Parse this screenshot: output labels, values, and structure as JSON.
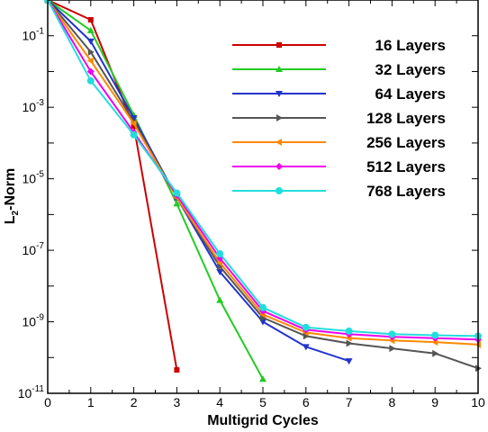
{
  "chart_data": {
    "type": "line",
    "xlabel": "Multigrid Cycles",
    "ylabel_main": "L",
    "ylabel_sub": "2",
    "ylabel_rest": "-Norm",
    "xlim": [
      0,
      10
    ],
    "ylim": [
      1e-11,
      1
    ],
    "yscale": "log",
    "grid": false,
    "legend_placement": "top-right",
    "x_ticks": [
      {
        "value": 0,
        "label": "0"
      },
      {
        "value": 1,
        "label": "1"
      },
      {
        "value": 2,
        "label": "2"
      },
      {
        "value": 3,
        "label": "3"
      },
      {
        "value": 4,
        "label": "4"
      },
      {
        "value": 5,
        "label": "5"
      },
      {
        "value": 6,
        "label": "6"
      },
      {
        "value": 7,
        "label": "7"
      },
      {
        "value": 8,
        "label": "8"
      },
      {
        "value": 9,
        "label": "9"
      },
      {
        "value": 10,
        "label": "10"
      }
    ],
    "y_ticks": [
      {
        "value": 0.1,
        "base": "10",
        "exp": "-1"
      },
      {
        "value": 0.001,
        "base": "10",
        "exp": "-3"
      },
      {
        "value": 1e-05,
        "base": "10",
        "exp": "-5"
      },
      {
        "value": 1e-07,
        "base": "10",
        "exp": "-7"
      },
      {
        "value": 1e-09,
        "base": "10",
        "exp": "-9"
      },
      {
        "value": 1e-11,
        "base": "10",
        "exp": "-11"
      }
    ],
    "series": [
      {
        "name": "16 Layers",
        "color": "#cc0000",
        "marker": "square",
        "x": [
          0,
          1,
          2,
          3
        ],
        "y": [
          1.0,
          0.28,
          0.0003,
          4.5e-11
        ]
      },
      {
        "name": "32 Layers",
        "color": "#22cc22",
        "marker": "triangle-up",
        "x": [
          0,
          1,
          2,
          3,
          4,
          5
        ],
        "y": [
          1.0,
          0.14,
          0.0006,
          2e-06,
          4e-09,
          2.5e-11
        ]
      },
      {
        "name": "64 Layers",
        "color": "#2233cc",
        "marker": "triangle-down",
        "x": [
          0,
          1,
          2,
          3,
          4,
          5,
          6,
          7
        ],
        "y": [
          1.0,
          0.07,
          0.0005,
          3e-06,
          2.5e-08,
          1e-09,
          2e-10,
          8e-11
        ]
      },
      {
        "name": "128 Layers",
        "color": "#555555",
        "marker": "triangle-right",
        "x": [
          0,
          1,
          2,
          3,
          4,
          5,
          6,
          7,
          8,
          9,
          10
        ],
        "y": [
          1.0,
          0.035,
          0.0004,
          3e-06,
          3.5e-08,
          1.3e-09,
          4e-10,
          2.5e-10,
          1.8e-10,
          1.3e-10,
          5e-11
        ]
      },
      {
        "name": "256 Layers",
        "color": "#ff8800",
        "marker": "triangle-left",
        "x": [
          0,
          1,
          2,
          3,
          4,
          5,
          6,
          7,
          8,
          9,
          10
        ],
        "y": [
          1.0,
          0.02,
          0.00035,
          3e-06,
          4.5e-08,
          1.6e-09,
          5e-10,
          3.5e-10,
          3e-10,
          2.7e-10,
          2.3e-10
        ]
      },
      {
        "name": "512 Layers",
        "color": "#ee00ee",
        "marker": "diamond",
        "x": [
          0,
          1,
          2,
          3,
          4,
          5,
          6,
          7,
          8,
          9,
          10
        ],
        "y": [
          1.0,
          0.01,
          0.0002,
          3.5e-06,
          6e-08,
          2e-09,
          6e-10,
          4.5e-10,
          3.8e-10,
          3.5e-10,
          3.2e-10
        ]
      },
      {
        "name": "768 Layers",
        "color": "#22dddd",
        "marker": "circle",
        "x": [
          0,
          1,
          2,
          3,
          4,
          5,
          6,
          7,
          8,
          9,
          10
        ],
        "y": [
          1.0,
          0.0055,
          0.00017,
          4e-06,
          8e-08,
          2.5e-09,
          7e-10,
          5.5e-10,
          4.5e-10,
          4.2e-10,
          4e-10
        ]
      }
    ]
  }
}
